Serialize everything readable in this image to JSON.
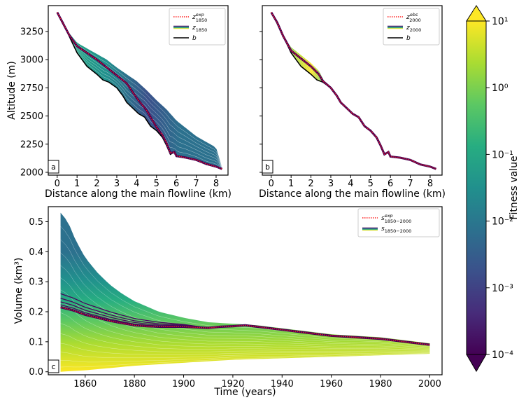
{
  "chart_data": [
    {
      "panel": "a",
      "type": "line",
      "xlabel": "Distance along the main flowline (km)",
      "ylabel": "Altitude (m)",
      "xlim": [
        -0.45,
        8.6
      ],
      "ylim": [
        1975,
        3480
      ],
      "xticks": [
        "0",
        "1",
        "2",
        "3",
        "4",
        "5",
        "6",
        "7",
        "8"
      ],
      "yticks": [
        "2000",
        "2250",
        "2500",
        "2750",
        "3000",
        "3250"
      ],
      "legend_position": "top-right",
      "legend": [
        "z_1850^exp",
        "z_1850",
        "b"
      ],
      "series": [
        {
          "name": "b",
          "x": [
            0.0,
            0.3,
            0.6,
            1.0,
            1.5,
            2.0,
            2.3,
            2.6,
            3.0,
            3.3,
            3.5,
            3.8,
            4.1,
            4.4,
            4.7,
            5.0,
            5.3,
            5.5,
            5.7,
            5.9,
            6.0,
            6.5,
            7.0,
            7.5,
            8.0,
            8.3
          ],
          "y": [
            3420,
            3330,
            3210,
            3060,
            2940,
            2870,
            2820,
            2800,
            2750,
            2680,
            2620,
            2570,
            2520,
            2490,
            2410,
            2370,
            2310,
            2240,
            2160,
            2180,
            2140,
            2130,
            2110,
            2070,
            2050,
            2030
          ]
        },
        {
          "name": "z_1850^exp",
          "x": [
            0.0,
            0.3,
            0.6,
            1.0,
            1.5,
            2.0,
            2.5,
            3.0,
            3.5,
            4.0,
            4.5,
            5.0,
            5.3,
            5.5,
            5.7,
            5.9,
            6.0,
            6.5,
            7.0,
            7.5,
            8.0,
            8.3
          ],
          "y": [
            3420,
            3320,
            3220,
            3120,
            3060,
            3000,
            2930,
            2860,
            2790,
            2660,
            2550,
            2400,
            2330,
            2260,
            2170,
            2180,
            2145,
            2130,
            2110,
            2075,
            2050,
            2030
          ]
        }
      ],
      "ensemble_upper_envelope": {
        "x": [
          0.0,
          0.5,
          1.0,
          1.5,
          2.0,
          2.5,
          3.0,
          3.5,
          4.0,
          4.5,
          5.0,
          5.5,
          6.0,
          6.5,
          7.0,
          7.5,
          8.0,
          8.3
        ],
        "y": [
          3420,
          3260,
          3150,
          3100,
          3050,
          3000,
          2930,
          2870,
          2810,
          2730,
          2640,
          2560,
          2460,
          2390,
          2320,
          2270,
          2220,
          2040
        ]
      }
    },
    {
      "panel": "b",
      "type": "line",
      "xlabel": "Distance along the main flowline (km)",
      "xlim": [
        -0.45,
        8.6
      ],
      "ylim": [
        1975,
        3480
      ],
      "xticks": [
        "0",
        "1",
        "2",
        "3",
        "4",
        "5",
        "6",
        "7",
        "8"
      ],
      "legend_position": "top-right",
      "legend": [
        "z_2000^obs",
        "z_2000",
        "b"
      ],
      "series": [
        {
          "name": "b",
          "x": [
            0.0,
            0.3,
            0.6,
            1.0,
            1.5,
            2.0,
            2.3,
            2.6,
            3.0,
            3.3,
            3.5,
            3.8,
            4.1,
            4.4,
            4.7,
            5.0,
            5.3,
            5.5,
            5.7,
            5.9,
            6.0,
            6.5,
            7.0,
            7.5,
            8.0,
            8.3
          ],
          "y": [
            3420,
            3330,
            3210,
            3060,
            2940,
            2870,
            2820,
            2800,
            2750,
            2680,
            2620,
            2570,
            2520,
            2490,
            2410,
            2370,
            2310,
            2240,
            2160,
            2180,
            2140,
            2130,
            2110,
            2070,
            2050,
            2030
          ]
        },
        {
          "name": "z_2000^obs",
          "x": [
            0.0,
            0.3,
            0.6,
            1.0,
            1.5,
            2.0,
            2.4,
            2.6,
            3.0,
            3.3,
            3.5,
            3.8,
            4.1,
            4.4,
            4.7,
            5.0,
            5.3,
            5.5,
            5.7,
            5.9,
            6.0,
            6.5,
            7.0,
            7.5,
            8.0,
            8.3
          ],
          "y": [
            3420,
            3330,
            3210,
            3080,
            3010,
            2940,
            2870,
            2810,
            2750,
            2680,
            2620,
            2570,
            2520,
            2490,
            2410,
            2370,
            2310,
            2240,
            2160,
            2180,
            2140,
            2130,
            2110,
            2070,
            2050,
            2030
          ]
        }
      ],
      "ensemble_upper_envelope": {
        "x": [
          0.0,
          0.5,
          1.0,
          1.5,
          2.0,
          2.4,
          2.7
        ],
        "y": [
          3420,
          3230,
          3110,
          3040,
          2970,
          2900,
          2800
        ]
      }
    },
    {
      "panel": "c",
      "type": "line",
      "xlabel": "Time (years)",
      "ylabel": "Volume (km³)",
      "xlim": [
        1845,
        2005
      ],
      "ylim": [
        -0.01,
        0.55
      ],
      "xticks": [
        "1860",
        "1880",
        "1900",
        "1920",
        "1940",
        "1960",
        "1980",
        "2000"
      ],
      "yticks": [
        "0.0",
        "0.1",
        "0.2",
        "0.3",
        "0.4",
        "0.5"
      ],
      "legend_position": "top-right",
      "legend": [
        "s_1850−2000^exp",
        "s_1850−2000"
      ],
      "series": [
        {
          "name": "s_1850−2000^exp",
          "x": [
            1850,
            1855,
            1860,
            1865,
            1870,
            1875,
            1880,
            1885,
            1890,
            1900,
            1910,
            1915,
            1920,
            1925,
            1930,
            1940,
            1950,
            1960,
            1970,
            1980,
            1990,
            2000
          ],
          "y": [
            0.215,
            0.205,
            0.19,
            0.18,
            0.17,
            0.162,
            0.155,
            0.152,
            0.15,
            0.15,
            0.146,
            0.15,
            0.152,
            0.155,
            0.15,
            0.14,
            0.13,
            0.12,
            0.115,
            0.11,
            0.1,
            0.09
          ]
        }
      ],
      "ensemble_upper_envelope": {
        "x": [
          1850,
          1853,
          1856,
          1860,
          1865,
          1870,
          1875,
          1880,
          1890,
          1900,
          1910,
          1920,
          1930,
          1940,
          1950,
          1960,
          1970,
          1980,
          1990,
          2000
        ],
        "y": [
          0.53,
          0.5,
          0.44,
          0.38,
          0.33,
          0.29,
          0.26,
          0.235,
          0.2,
          0.18,
          0.165,
          0.16,
          0.155,
          0.145,
          0.135,
          0.125,
          0.12,
          0.115,
          0.105,
          0.095
        ]
      },
      "ensemble_lower_envelope": {
        "x": [
          1850,
          1860,
          1880,
          1900,
          1920,
          1940,
          1960,
          1980,
          2000
        ],
        "y": [
          0.0,
          0.005,
          0.02,
          0.03,
          0.04,
          0.045,
          0.05,
          0.055,
          0.06
        ]
      }
    },
    {
      "type": "colorbar",
      "label": "Fitness value",
      "scale": "log",
      "range": [
        0.0001,
        10
      ],
      "ticks": [
        "10¹",
        "10⁰",
        "10⁻¹",
        "10⁻²",
        "10⁻³",
        "10⁻⁴"
      ],
      "colormap": "viridis",
      "colors": [
        "#440154",
        "#472c7a",
        "#3b518b",
        "#2c718e",
        "#21908d",
        "#27ad81",
        "#5cc863",
        "#aadc32",
        "#fde725"
      ]
    }
  ],
  "labels": {
    "panel_a": "a",
    "panel_b": "b",
    "panel_c": "c"
  }
}
